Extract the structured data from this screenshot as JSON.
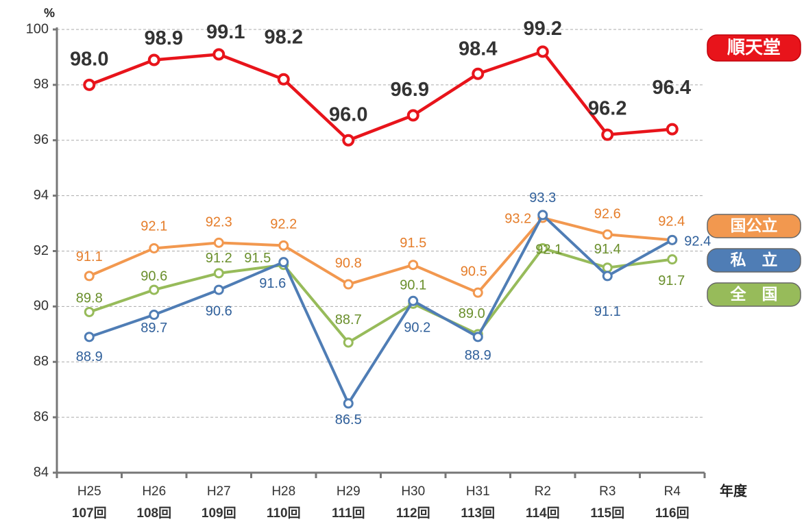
{
  "chart_data": {
    "type": "line",
    "y_unit": "%",
    "x_label": "年度",
    "categories": [
      "H25",
      "H26",
      "H27",
      "H28",
      "H29",
      "H30",
      "H31",
      "R2",
      "R3",
      "R4"
    ],
    "category_sublabels": [
      "107回",
      "108回",
      "109回",
      "110回",
      "111回",
      "112回",
      "113回",
      "114回",
      "115回",
      "116回"
    ],
    "ylim": [
      84,
      100
    ],
    "yticks": [
      84,
      86,
      88,
      90,
      92,
      94,
      96,
      98,
      100
    ],
    "grid": true,
    "series": [
      {
        "name": "順天堂",
        "color": "#e8141b",
        "values": [
          98.0,
          98.9,
          99.1,
          98.2,
          96.0,
          96.9,
          98.4,
          99.2,
          96.2,
          96.4
        ],
        "value_labels": [
          "98.0",
          "98.9",
          "99.1",
          "98.2",
          "96.0",
          "96.9",
          "98.4",
          "99.2",
          "96.2",
          "96.4"
        ]
      },
      {
        "name": "国公立",
        "color": "#f2984f",
        "values": [
          91.1,
          92.1,
          92.3,
          92.2,
          90.8,
          91.5,
          90.5,
          93.2,
          92.6,
          92.4
        ],
        "value_labels": [
          "91.1",
          "92.1",
          "92.3",
          "92.2",
          "90.8",
          "91.5",
          "90.5",
          "93.2",
          "92.6",
          "92.4"
        ]
      },
      {
        "name": "私　立",
        "color": "#4f7db5",
        "values": [
          88.9,
          89.7,
          90.6,
          91.6,
          86.5,
          90.2,
          88.9,
          93.3,
          91.1,
          92.4
        ],
        "value_labels": [
          "88.9",
          "89.7",
          "90.6",
          "91.6",
          "86.5",
          "90.2",
          "88.9",
          "93.3",
          "91.1",
          "92.4"
        ]
      },
      {
        "name": "全　国",
        "color": "#97bb5a",
        "values": [
          89.8,
          90.6,
          91.2,
          91.5,
          88.7,
          90.1,
          89.0,
          92.1,
          91.4,
          91.7
        ],
        "value_labels": [
          "89.8",
          "90.6",
          "91.2",
          "91.5",
          "88.7",
          "90.1",
          "89.0",
          "92.1",
          "91.4",
          "91.7"
        ]
      }
    ]
  }
}
